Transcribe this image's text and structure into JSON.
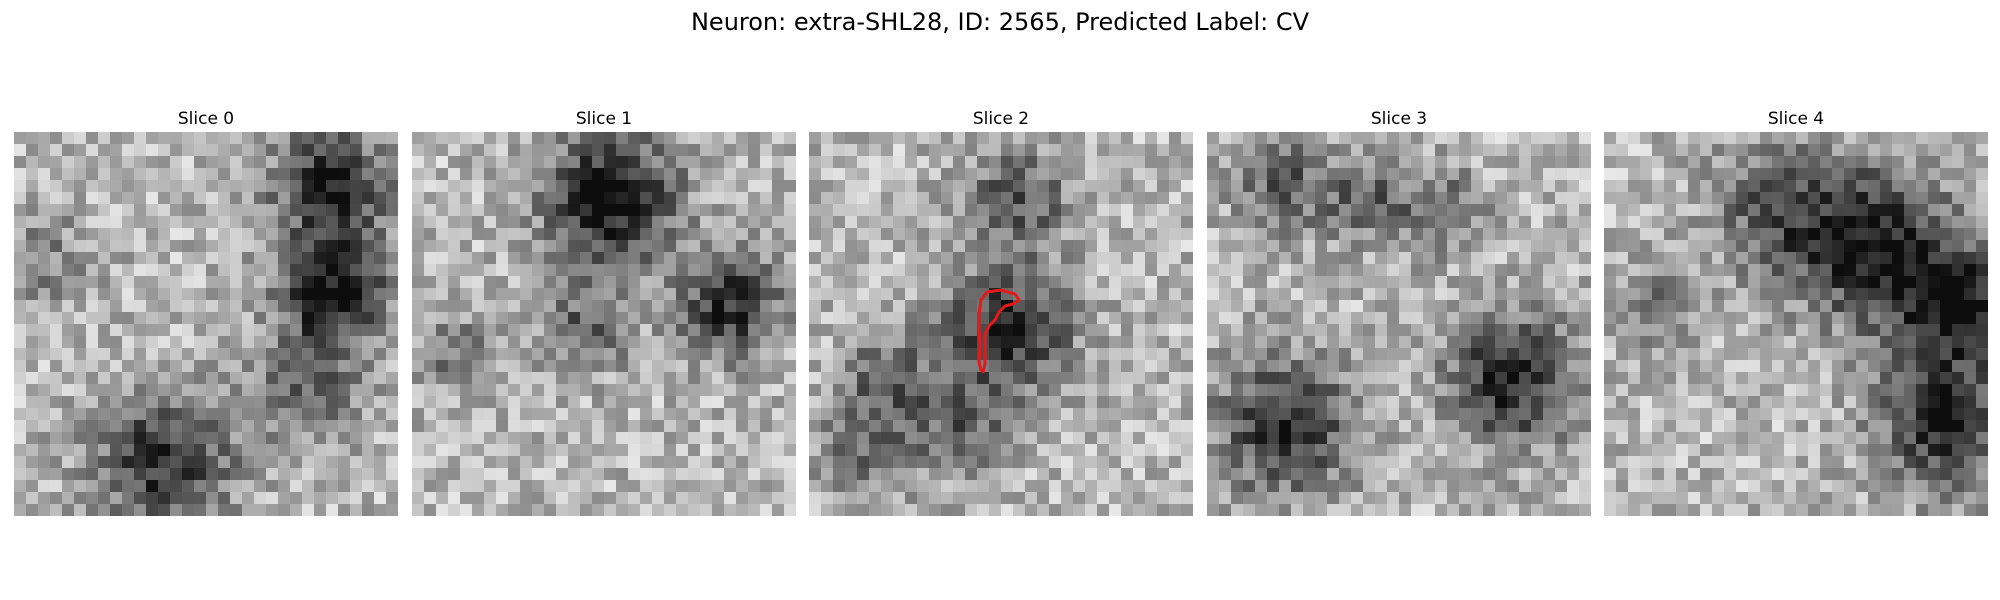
{
  "figure": {
    "title": "Neuron: extra-SHL28, ID: 2565, Predicted Label: CV"
  },
  "panels": [
    {
      "title": "Slice 0",
      "seed": 11,
      "has_contour": false
    },
    {
      "title": "Slice 1",
      "seed": 23,
      "has_contour": false
    },
    {
      "title": "Slice 2",
      "seed": 37,
      "has_contour": true
    },
    {
      "title": "Slice 3",
      "seed": 51,
      "has_contour": false
    },
    {
      "title": "Slice 4",
      "seed": 73,
      "has_contour": false
    }
  ],
  "image_grid": {
    "cells_per_side": 32,
    "colormap": "gray"
  },
  "contour": {
    "color": "#e31a1c"
  }
}
